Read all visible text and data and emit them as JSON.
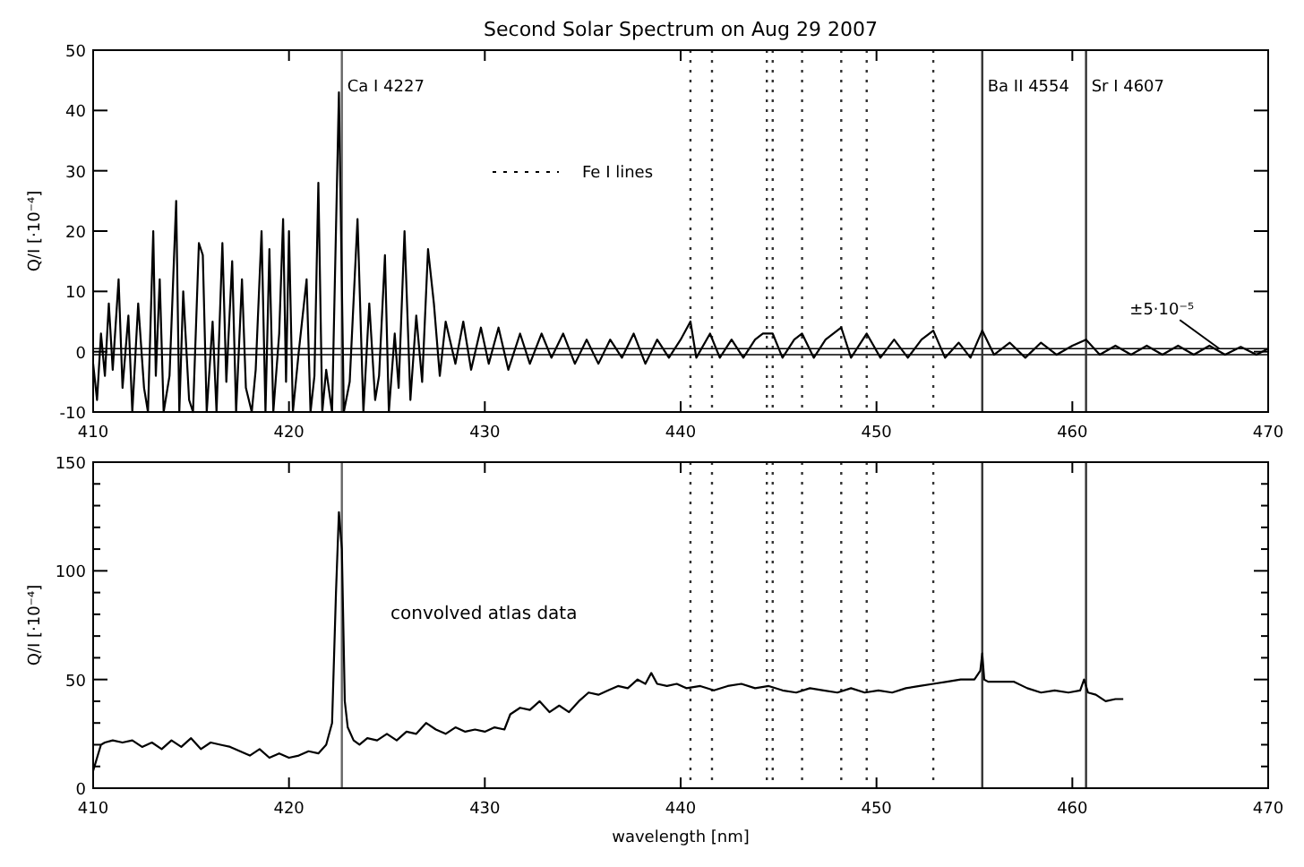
{
  "chart_data": [
    {
      "type": "line",
      "title": "Second Solar Spectrum on Aug 29 2007",
      "ylabel": "Q/I [·10⁻⁴]",
      "xlim": [
        410,
        470
      ],
      "xticks": [
        410,
        420,
        430,
        440,
        450,
        460,
        470
      ],
      "ylim": [
        -10,
        50
      ],
      "yticks": [
        -10,
        0,
        10,
        20,
        30,
        40,
        50
      ],
      "grid": false,
      "line_style": "solid",
      "marker": "none",
      "series": [
        {
          "color": "#000000",
          "x": [
            410.0,
            410.2,
            410.4,
            410.6,
            410.8,
            411.0,
            411.3,
            411.5,
            411.8,
            412.0,
            412.3,
            412.6,
            412.8,
            413.07,
            413.2,
            413.4,
            413.6,
            413.9,
            414.24,
            414.4,
            414.6,
            414.9,
            415.1,
            415.4,
            415.6,
            415.8,
            416.1,
            416.3,
            416.6,
            416.8,
            417.1,
            417.3,
            417.6,
            417.8,
            418.1,
            418.3,
            418.6,
            418.8,
            419.0,
            419.2,
            419.5,
            419.7,
            419.85,
            420.0,
            420.2,
            420.5,
            420.9,
            421.1,
            421.3,
            421.5,
            421.7,
            421.9,
            422.2,
            422.55,
            422.8,
            423.1,
            423.5,
            423.8,
            424.1,
            424.4,
            424.6,
            424.9,
            425.1,
            425.4,
            425.6,
            425.9,
            426.2,
            426.5,
            426.8,
            427.1,
            427.4,
            427.7,
            428.0,
            428.5,
            428.9,
            429.3,
            429.8,
            430.2,
            430.7,
            431.2,
            431.8,
            432.3,
            432.9,
            433.4,
            434.0,
            434.6,
            435.2,
            435.8,
            436.4,
            437.0,
            437.6,
            438.2,
            438.8,
            439.4,
            440.0,
            440.5,
            440.8,
            441.5,
            442.0,
            442.6,
            443.2,
            443.8,
            444.2,
            444.7,
            445.2,
            445.8,
            446.2,
            446.8,
            447.4,
            448.2,
            448.7,
            449.5,
            450.2,
            450.9,
            451.6,
            452.3,
            452.9,
            453.5,
            454.2,
            454.8,
            455.4,
            456.0,
            456.8,
            457.6,
            458.4,
            459.2,
            460.0,
            460.7,
            461.4,
            462.2,
            463.0,
            463.8,
            464.6,
            465.4,
            466.2,
            467.0,
            467.8,
            468.6,
            469.4,
            470.0
          ],
          "values": [
            -2,
            -8,
            3,
            -4,
            8,
            -3,
            12,
            -6,
            6,
            -10,
            8,
            -6,
            -10,
            20,
            -4,
            12,
            -10,
            -4,
            25,
            -10,
            10,
            -8,
            -10,
            18,
            16,
            -10,
            5,
            -10,
            18,
            -5,
            15,
            -10,
            12,
            -6,
            -10,
            -3,
            20,
            -10,
            17,
            -10,
            3,
            22,
            -5,
            20,
            -10,
            0,
            12,
            -10,
            -4,
            28,
            -10,
            -3,
            -10,
            43,
            -10,
            -5,
            22,
            -10,
            8,
            -8,
            -4,
            16,
            -10,
            3,
            -6,
            20,
            -8,
            6,
            -5,
            17,
            8,
            -4,
            5,
            -2,
            5,
            -3,
            4,
            -2,
            4,
            -3,
            3,
            -2,
            3,
            -1,
            3,
            -2,
            2,
            -2,
            2,
            -1,
            3,
            -2,
            2,
            -1,
            2,
            5,
            -1,
            3,
            -1,
            2,
            -1,
            2,
            3,
            3,
            -1,
            2,
            3,
            -1,
            2,
            4,
            -1,
            3,
            -1,
            2,
            -1,
            2,
            3.5,
            -1,
            1.5,
            -1,
            3.5,
            -0.5,
            1.5,
            -1,
            1.5,
            -0.5,
            1,
            2,
            -0.5,
            1,
            -0.5,
            1,
            -0.5,
            1,
            -0.5,
            1,
            -0.5,
            0.8,
            -0.5,
            0.5
          ]
        }
      ],
      "ref_lines": [
        {
          "axis": "y",
          "value": 0.5,
          "label": null,
          "color": "#000000",
          "line_style": "solid"
        },
        {
          "axis": "y",
          "value": -0.5,
          "label": null,
          "color": "#000000",
          "line_style": "solid"
        },
        {
          "axis": "x",
          "value": 422.7,
          "label": "Ca I 4227",
          "color": "#666666",
          "line_style": "solid"
        },
        {
          "axis": "x",
          "value": 440.5,
          "label": null,
          "color": "#333333",
          "line_style": "dotted"
        },
        {
          "axis": "x",
          "value": 441.6,
          "label": null,
          "color": "#333333",
          "line_style": "dotted"
        },
        {
          "axis": "x",
          "value": 444.4,
          "label": null,
          "color": "#333333",
          "line_style": "dotted"
        },
        {
          "axis": "x",
          "value": 444.7,
          "label": null,
          "color": "#333333",
          "line_style": "dotted"
        },
        {
          "axis": "x",
          "value": 446.2,
          "label": null,
          "color": "#333333",
          "line_style": "dotted"
        },
        {
          "axis": "x",
          "value": 448.2,
          "label": null,
          "color": "#333333",
          "line_style": "dotted"
        },
        {
          "axis": "x",
          "value": 449.5,
          "label": null,
          "color": "#333333",
          "line_style": "dotted"
        },
        {
          "axis": "x",
          "value": 452.9,
          "label": null,
          "color": "#333333",
          "line_style": "dotted"
        },
        {
          "axis": "x",
          "value": 455.4,
          "label": "Ba II 4554",
          "color": "#333333",
          "line_style": "solid"
        },
        {
          "axis": "x",
          "value": 460.7,
          "label": "Sr I 4607",
          "color": "#333333",
          "line_style": "solid"
        }
      ],
      "annotations": [
        "Fe I lines",
        {
          "text": "±5·10⁻⁵",
          "x": 467.5,
          "y": 0.5
        }
      ]
    },
    {
      "type": "line",
      "xlabel": "wavelength [nm]",
      "ylabel": "Q/I [·10⁻⁴]",
      "xlim": [
        410,
        470
      ],
      "xticks": [
        410,
        420,
        430,
        440,
        450,
        460,
        470
      ],
      "ylim": [
        0,
        150
      ],
      "yticks": [
        0,
        {
          "value": 10,
          "label": null
        },
        {
          "value": 20,
          "label": null
        },
        {
          "value": 30,
          "label": null
        },
        {
          "value": 40,
          "label": null
        },
        50,
        {
          "value": 60,
          "label": null
        },
        {
          "value": 70,
          "label": null
        },
        {
          "value": 80,
          "label": null
        },
        {
          "value": 90,
          "label": null
        },
        100,
        {
          "value": 110,
          "label": null
        },
        {
          "value": 120,
          "label": null
        },
        {
          "value": 130,
          "label": null
        },
        {
          "value": 140,
          "label": null
        },
        150
      ],
      "grid": false,
      "line_style": "solid",
      "marker": "none",
      "series": [
        {
          "color": "#000000",
          "x": [
            410.0,
            410.2,
            410.4,
            410.6,
            411.0,
            411.5,
            412.0,
            412.5,
            413.0,
            413.5,
            414.0,
            414.5,
            415.0,
            415.5,
            416.0,
            416.5,
            417.0,
            417.5,
            418.0,
            418.5,
            419.0,
            419.5,
            420.0,
            420.5,
            421.0,
            421.5,
            421.9,
            422.2,
            422.4,
            422.55,
            422.7,
            422.85,
            423.0,
            423.3,
            423.6,
            424.0,
            424.5,
            425.0,
            425.5,
            426.0,
            426.5,
            427.0,
            427.5,
            428.0,
            428.5,
            429.0,
            429.5,
            430.0,
            430.5,
            431.0,
            431.3,
            431.8,
            432.3,
            432.8,
            433.3,
            433.8,
            434.3,
            434.8,
            435.3,
            435.8,
            436.3,
            436.8,
            437.3,
            437.8,
            438.2,
            438.5,
            438.8,
            439.3,
            439.8,
            440.3,
            441.0,
            441.7,
            442.4,
            443.1,
            443.8,
            444.5,
            445.2,
            445.9,
            446.6,
            447.3,
            448.0,
            448.7,
            449.4,
            450.1,
            450.8,
            451.5,
            452.2,
            452.9,
            453.6,
            454.3,
            455.0,
            455.3,
            455.4,
            455.5,
            455.7,
            456.3,
            457.0,
            457.7,
            458.4,
            459.1,
            459.8,
            460.4,
            460.6,
            460.8,
            461.2,
            461.7,
            462.2,
            462.6
          ],
          "values": [
            8,
            14,
            20,
            21,
            22,
            21,
            22,
            19,
            21,
            18,
            22,
            19,
            23,
            18,
            21,
            20,
            19,
            17,
            15,
            18,
            14,
            16,
            14,
            15,
            17,
            16,
            20,
            30,
            90,
            127,
            110,
            40,
            28,
            22,
            20,
            23,
            22,
            25,
            22,
            26,
            25,
            30,
            27,
            25,
            28,
            26,
            27,
            26,
            28,
            27,
            34,
            37,
            36,
            40,
            35,
            38,
            35,
            40,
            44,
            43,
            45,
            47,
            46,
            50,
            48,
            53,
            48,
            47,
            48,
            46,
            47,
            45,
            47,
            48,
            46,
            47,
            45,
            44,
            46,
            45,
            44,
            46,
            44,
            45,
            44,
            46,
            47,
            48,
            49,
            50,
            50,
            54,
            62,
            50,
            49,
            49,
            49,
            46,
            44,
            45,
            44,
            45,
            50,
            44,
            43,
            40,
            41,
            41
          ]
        }
      ],
      "ref_lines": [
        {
          "axis": "x",
          "value": 422.7,
          "label": null,
          "color": "#666666",
          "line_style": "solid"
        },
        {
          "axis": "x",
          "value": 440.5,
          "label": null,
          "color": "#333333",
          "line_style": "dotted"
        },
        {
          "axis": "x",
          "value": 441.6,
          "label": null,
          "color": "#333333",
          "line_style": "dotted"
        },
        {
          "axis": "x",
          "value": 444.4,
          "label": null,
          "color": "#333333",
          "line_style": "dotted"
        },
        {
          "axis": "x",
          "value": 444.7,
          "label": null,
          "color": "#333333",
          "line_style": "dotted"
        },
        {
          "axis": "x",
          "value": 446.2,
          "label": null,
          "color": "#333333",
          "line_style": "dotted"
        },
        {
          "axis": "x",
          "value": 448.2,
          "label": null,
          "color": "#333333",
          "line_style": "dotted"
        },
        {
          "axis": "x",
          "value": 449.5,
          "label": null,
          "color": "#333333",
          "line_style": "dotted"
        },
        {
          "axis": "x",
          "value": 452.9,
          "label": null,
          "color": "#333333",
          "line_style": "dotted"
        },
        {
          "axis": "x",
          "value": 455.4,
          "label": null,
          "color": "#333333",
          "line_style": "solid"
        },
        {
          "axis": "x",
          "value": 460.7,
          "label": null,
          "color": "#333333",
          "line_style": "solid"
        }
      ],
      "annotations": [
        "convolved atlas data"
      ]
    }
  ]
}
